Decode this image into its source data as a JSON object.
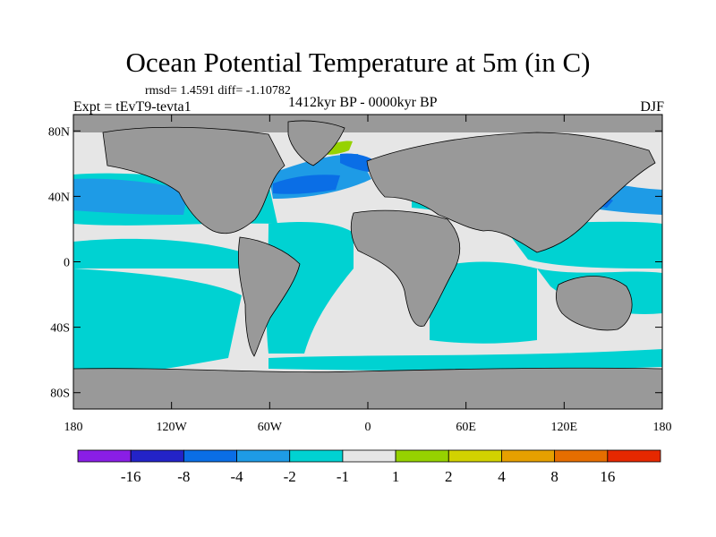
{
  "header": {
    "title": "Ocean Potential Temperature at 5m (in C)",
    "stats": "rmsd= 1.4591 diff= -1.10782",
    "experiment": "Expt = tEvT9-tevta1",
    "period": "1412kyr BP - 0000kyr BP",
    "season": "DJF"
  },
  "map": {
    "lat_range": [
      -90,
      90
    ],
    "lon_range": [
      -180,
      180
    ],
    "lat_ticks": [
      {
        "value": 80,
        "label": "80N"
      },
      {
        "value": 40,
        "label": "40N"
      },
      {
        "value": 0,
        "label": "0"
      },
      {
        "value": -40,
        "label": "40S"
      },
      {
        "value": -80,
        "label": "80S"
      }
    ],
    "lon_ticks": [
      {
        "value": -180,
        "label": "180"
      },
      {
        "value": -120,
        "label": "120W"
      },
      {
        "value": -60,
        "label": "60W"
      },
      {
        "value": 0,
        "label": "0"
      },
      {
        "value": 60,
        "label": "60E"
      },
      {
        "value": 120,
        "label": "120E"
      },
      {
        "value": 180,
        "label": "180"
      }
    ],
    "colors": {
      "land": "#999999",
      "ocean_neutral": "#e6e6e6",
      "coast": "#000000"
    }
  },
  "colorbar": {
    "colors": [
      "#8a1ee6",
      "#2323c8",
      "#0a6ee6",
      "#1e9be6",
      "#00d2d2",
      "#e6e6e6",
      "#96d200",
      "#d2d200",
      "#e6a000",
      "#e66e00",
      "#e62800"
    ],
    "labels": [
      "-16",
      "-8",
      "-4",
      "-2",
      "-1",
      "1",
      "2",
      "4",
      "8",
      "16"
    ]
  }
}
